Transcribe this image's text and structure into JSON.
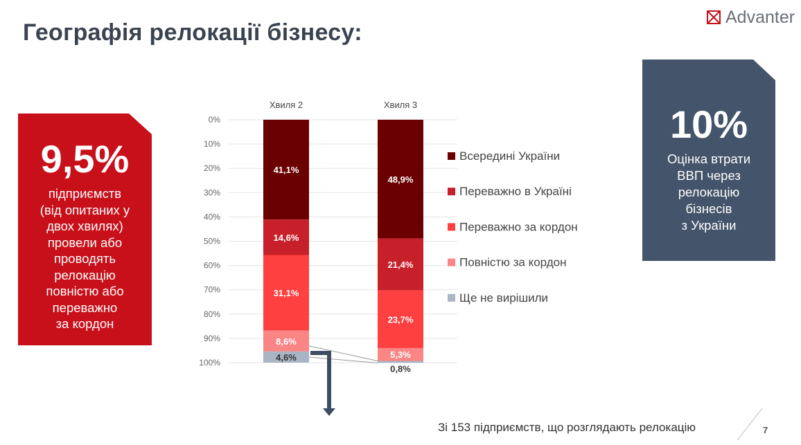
{
  "title": "Географія релокації бізнесу:",
  "logo": {
    "text": "Advanter",
    "icon": "advanter-logo-icon",
    "color": "#c8101a"
  },
  "left_card": {
    "value": "9,5%",
    "text_lines": [
      "підприємств",
      "(від опитаних у",
      "двох хвилях)",
      "провели або",
      "проводять",
      "релокацію",
      "повністю або",
      "переважно",
      "за кордон"
    ],
    "color": "#c8101a"
  },
  "right_card": {
    "value": "10%",
    "text_lines": [
      "Оцінка втрати",
      "ВВП через",
      "релокацію",
      "бізнесів",
      "з України"
    ],
    "color": "#44546a"
  },
  "footnote": "Зі 153 підприємств, що розглядають релокацію",
  "page_number": "7",
  "chart_data": {
    "type": "bar",
    "stacked": true,
    "orientation": "vertical",
    "y_axis": "inverted",
    "categories": [
      "Хвиля 2",
      "Хвиля 3"
    ],
    "yticks": [
      "0%",
      "10%",
      "20%",
      "30%",
      "40%",
      "50%",
      "60%",
      "70%",
      "80%",
      "90%",
      "100%"
    ],
    "ylim": [
      0,
      100
    ],
    "grid": true,
    "legend_position": "right",
    "series": [
      {
        "name": "Всередині України",
        "values": [
          41.1,
          48.9
        ],
        "labels": [
          "41,1%",
          "48,9%"
        ],
        "color": "#6b0000",
        "label_color": "#ffffff"
      },
      {
        "name": "Переважно в Україні",
        "values": [
          14.6,
          21.4
        ],
        "labels": [
          "14,6%",
          "21,4%"
        ],
        "color": "#c8202b",
        "label_color": "#ffffff"
      },
      {
        "name": "Переважно за кордон",
        "values": [
          31.1,
          23.7
        ],
        "labels": [
          "31,1%",
          "23,7%"
        ],
        "color": "#ff4040",
        "label_color": "#ffffff"
      },
      {
        "name": "Повністю за кордон",
        "values": [
          8.6,
          5.3
        ],
        "labels": [
          "8,6%",
          "5,3%"
        ],
        "color": "#f98585",
        "label_color": "#ffffff"
      },
      {
        "name": "Ще не вирішили",
        "values": [
          4.6,
          0.8
        ],
        "labels": [
          "4,6%",
          "0,8%"
        ],
        "color": "#a9b4c4",
        "label_color": "#333333"
      }
    ]
  }
}
